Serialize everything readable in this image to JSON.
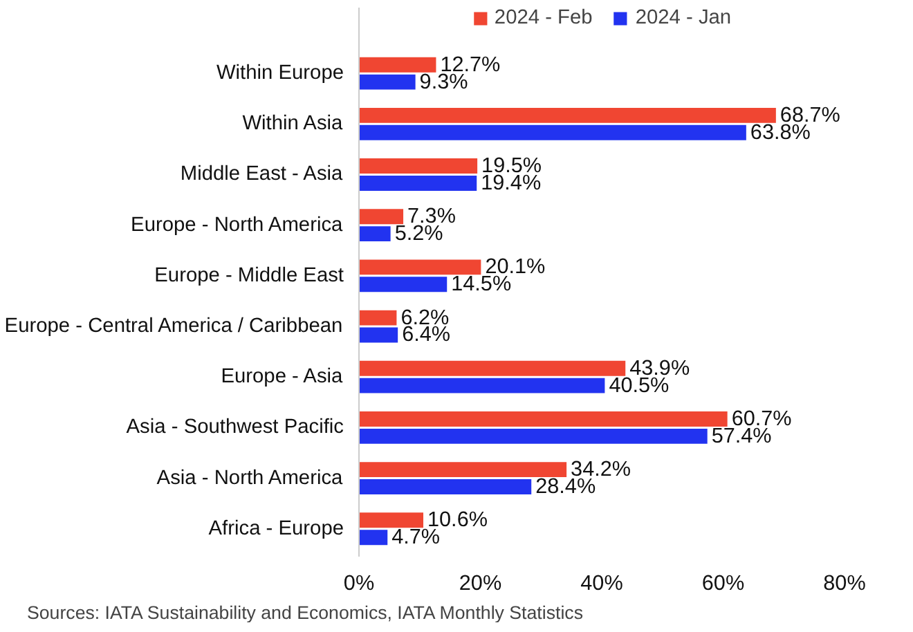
{
  "chart_data": {
    "type": "bar",
    "orientation": "horizontal",
    "categories": [
      "Within Europe",
      "Within Asia",
      "Middle East - Asia",
      "Europe - North America",
      "Europe - Middle East",
      "Europe - Central America / Caribbean",
      "Europe - Asia",
      "Asia - Southwest Pacific",
      "Asia - North America",
      "Africa - Europe"
    ],
    "series": [
      {
        "name": "2024 - Feb",
        "color": "#f04632",
        "values": [
          12.7,
          68.7,
          19.5,
          7.3,
          20.1,
          6.2,
          43.9,
          60.7,
          34.2,
          10.6
        ],
        "value_labels": [
          "12.7%",
          "68.7%",
          "19.5%",
          "7.3%",
          "20.1%",
          "6.2%",
          "43.9%",
          "60.7%",
          "34.2%",
          "10.6%"
        ]
      },
      {
        "name": "2024 - Jan",
        "color": "#2233f0",
        "values": [
          9.3,
          63.8,
          19.4,
          5.2,
          14.5,
          6.4,
          40.5,
          57.4,
          28.4,
          4.7
        ],
        "value_labels": [
          "9.3%",
          "63.8%",
          "19.4%",
          "5.2%",
          "14.5%",
          "6.4%",
          "40.5%",
          "57.4%",
          "28.4%",
          "4.7%"
        ]
      }
    ],
    "xlim": [
      0,
      80
    ],
    "xticks": [
      {
        "value": 0,
        "label": "0%"
      },
      {
        "value": 20,
        "label": "20%"
      },
      {
        "value": 40,
        "label": "40%"
      },
      {
        "value": 60,
        "label": "60%"
      },
      {
        "value": 80,
        "label": "80%"
      }
    ],
    "grid": false,
    "legend": "top",
    "annotations": [
      "Sources: IATA Sustainability and Economics, IATA Monthly Statistics"
    ]
  }
}
